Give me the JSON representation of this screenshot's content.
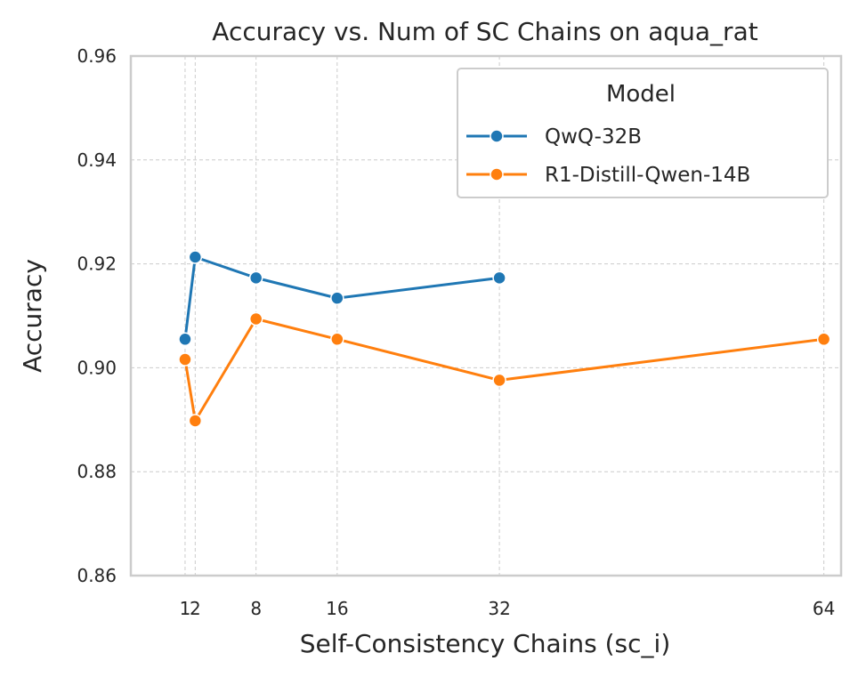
{
  "chart_data": {
    "type": "line",
    "title": "Accuracy vs. Num of SC Chains on aqua_rat",
    "xlabel": "Self-Consistency Chains (sc_i)",
    "ylabel": "Accuracy",
    "xlim": [
      -4.35,
      65.7
    ],
    "ylim": [
      0.86,
      0.96
    ],
    "xticks": [
      1,
      2,
      8,
      16,
      32,
      64
    ],
    "yticks": [
      0.86,
      0.88,
      0.9,
      0.92,
      0.94,
      0.96
    ],
    "ytick_labels": [
      "0.86",
      "0.88",
      "0.90",
      "0.92",
      "0.94",
      "0.96"
    ],
    "grid": true,
    "legend": {
      "title": "Model",
      "placement": "top-right"
    },
    "series": [
      {
        "name": "QwQ-32B",
        "color": "#1f77b4",
        "x": [
          1,
          2,
          8,
          16,
          32
        ],
        "y": [
          0.9055,
          0.9213,
          0.9173,
          0.9134,
          0.9173
        ]
      },
      {
        "name": "R1-Distill-Qwen-14B",
        "color": "#ff7f0e",
        "x": [
          1,
          2,
          8,
          16,
          32,
          64
        ],
        "y": [
          0.9016,
          0.8898,
          0.9094,
          0.9055,
          0.8976,
          0.9055
        ]
      }
    ]
  }
}
